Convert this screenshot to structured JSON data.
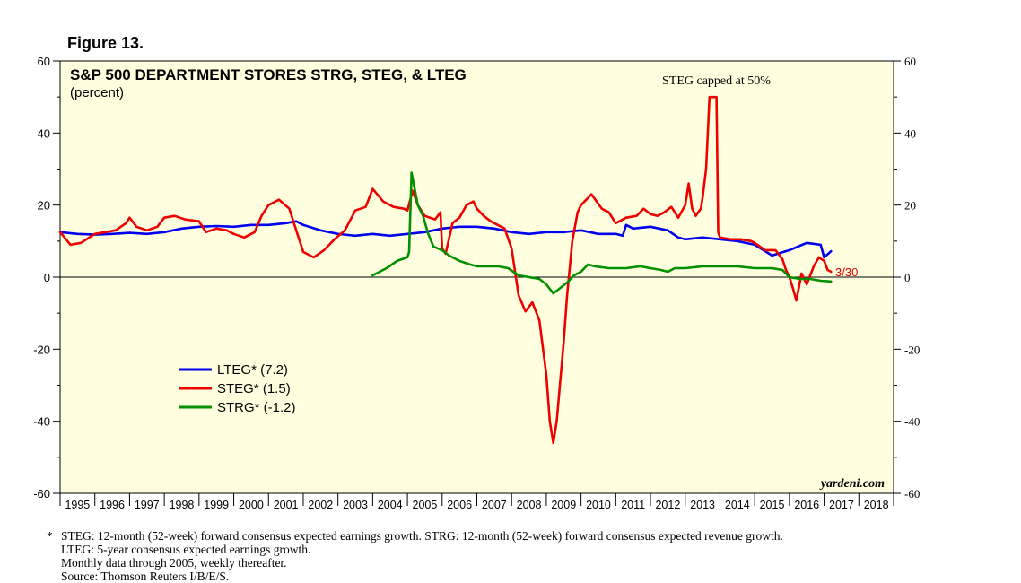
{
  "figure_label": "Figure 13.",
  "chart_data": {
    "type": "line",
    "title": "S&P 500 DEPARTMENT STORES STRG, STEG, & LTEG",
    "subtitle": "(percent)",
    "ylim": [
      -60,
      60
    ],
    "y_ticks": [
      60,
      40,
      20,
      0,
      -20,
      -40,
      -60
    ],
    "y_ticks_left": [
      "60",
      "40",
      "20",
      "0",
      "-20",
      "-40",
      "-60"
    ],
    "y_ticks_right": [
      "60",
      "40",
      "20",
      "0",
      "-20",
      "-40",
      "-60"
    ],
    "xlim": [
      1995,
      2019
    ],
    "x_ticks": [
      "1995",
      "1996",
      "1997",
      "1998",
      "1999",
      "2000",
      "2001",
      "2002",
      "2003",
      "2004",
      "2005",
      "2006",
      "2007",
      "2008",
      "2009",
      "2010",
      "2011",
      "2012",
      "2013",
      "2014",
      "2015",
      "2016",
      "2017",
      "2018"
    ],
    "annotation": "STEG capped at 50%",
    "end_label": "3/30",
    "watermark": "yardeni.com",
    "series": [
      {
        "name": "LTEG",
        "legend": "LTEG* (7.2)",
        "color": "#0000ee",
        "points": [
          [
            1995.0,
            12.5
          ],
          [
            1995.5,
            12.0
          ],
          [
            1996.0,
            11.8
          ],
          [
            1996.5,
            12.0
          ],
          [
            1997.0,
            12.3
          ],
          [
            1997.5,
            12.0
          ],
          [
            1998.0,
            12.5
          ],
          [
            1998.5,
            13.5
          ],
          [
            1999.0,
            14.0
          ],
          [
            1999.5,
            14.2
          ],
          [
            2000.0,
            14.0
          ],
          [
            2000.5,
            14.5
          ],
          [
            2001.0,
            14.5
          ],
          [
            2001.5,
            15.0
          ],
          [
            2001.8,
            15.5
          ],
          [
            2002.0,
            14.5
          ],
          [
            2002.5,
            13.0
          ],
          [
            2003.0,
            12.0
          ],
          [
            2003.5,
            11.5
          ],
          [
            2004.0,
            12.0
          ],
          [
            2004.5,
            11.5
          ],
          [
            2005.0,
            12.0
          ],
          [
            2005.5,
            12.5
          ],
          [
            2006.0,
            13.5
          ],
          [
            2006.5,
            14.0
          ],
          [
            2007.0,
            14.0
          ],
          [
            2007.5,
            13.5
          ],
          [
            2008.0,
            12.5
          ],
          [
            2008.5,
            12.0
          ],
          [
            2009.0,
            12.5
          ],
          [
            2009.5,
            12.5
          ],
          [
            2010.0,
            13.0
          ],
          [
            2010.5,
            12.0
          ],
          [
            2011.0,
            12.0
          ],
          [
            2011.2,
            11.5
          ],
          [
            2011.3,
            14.5
          ],
          [
            2011.5,
            13.5
          ],
          [
            2012.0,
            14.0
          ],
          [
            2012.5,
            13.0
          ],
          [
            2012.8,
            11.0
          ],
          [
            2013.0,
            10.5
          ],
          [
            2013.5,
            11.0
          ],
          [
            2014.0,
            10.5
          ],
          [
            2014.5,
            10.0
          ],
          [
            2015.0,
            9.0
          ],
          [
            2015.5,
            6.0
          ],
          [
            2016.0,
            7.5
          ],
          [
            2016.5,
            9.5
          ],
          [
            2016.9,
            9.0
          ],
          [
            2017.0,
            5.5
          ],
          [
            2017.2,
            7.2
          ]
        ]
      },
      {
        "name": "STEG",
        "legend": "STEG* (1.5)",
        "color": "#ee0000",
        "points": [
          [
            1995.0,
            12.5
          ],
          [
            1995.3,
            9.0
          ],
          [
            1995.6,
            9.5
          ],
          [
            1996.0,
            12.0
          ],
          [
            1996.3,
            12.5
          ],
          [
            1996.6,
            13.0
          ],
          [
            1996.9,
            15.0
          ],
          [
            1997.0,
            16.5
          ],
          [
            1997.2,
            14.0
          ],
          [
            1997.5,
            13.0
          ],
          [
            1997.8,
            14.0
          ],
          [
            1998.0,
            16.5
          ],
          [
            1998.3,
            17.0
          ],
          [
            1998.6,
            16.0
          ],
          [
            1999.0,
            15.5
          ],
          [
            1999.2,
            12.5
          ],
          [
            1999.5,
            13.5
          ],
          [
            1999.8,
            13.0
          ],
          [
            2000.0,
            12.0
          ],
          [
            2000.3,
            11.0
          ],
          [
            2000.6,
            12.5
          ],
          [
            2000.8,
            17.0
          ],
          [
            2001.0,
            20.0
          ],
          [
            2001.3,
            21.5
          ],
          [
            2001.6,
            19.0
          ],
          [
            2001.8,
            13.0
          ],
          [
            2002.0,
            7.0
          ],
          [
            2002.3,
            5.5
          ],
          [
            2002.6,
            7.5
          ],
          [
            2002.9,
            10.5
          ],
          [
            2003.2,
            13.0
          ],
          [
            2003.5,
            18.5
          ],
          [
            2003.8,
            19.5
          ],
          [
            2004.0,
            24.5
          ],
          [
            2004.3,
            21.0
          ],
          [
            2004.6,
            19.5
          ],
          [
            2004.9,
            19.0
          ],
          [
            2005.0,
            18.5
          ],
          [
            2005.15,
            24.0
          ],
          [
            2005.3,
            20.0
          ],
          [
            2005.5,
            17.0
          ],
          [
            2005.8,
            16.0
          ],
          [
            2005.95,
            18.0
          ],
          [
            2006.0,
            8.0
          ],
          [
            2006.1,
            6.5
          ],
          [
            2006.3,
            15.0
          ],
          [
            2006.5,
            16.5
          ],
          [
            2006.7,
            20.0
          ],
          [
            2006.9,
            21.0
          ],
          [
            2007.0,
            19.0
          ],
          [
            2007.2,
            17.0
          ],
          [
            2007.4,
            15.5
          ],
          [
            2007.6,
            14.5
          ],
          [
            2007.8,
            13.5
          ],
          [
            2008.0,
            8.0
          ],
          [
            2008.2,
            -5.0
          ],
          [
            2008.4,
            -9.5
          ],
          [
            2008.6,
            -7.0
          ],
          [
            2008.8,
            -12.0
          ],
          [
            2009.0,
            -27.0
          ],
          [
            2009.1,
            -40.0
          ],
          [
            2009.2,
            -46.0
          ],
          [
            2009.3,
            -40.0
          ],
          [
            2009.5,
            -18.0
          ],
          [
            2009.6,
            -5.0
          ],
          [
            2009.75,
            10.0
          ],
          [
            2009.9,
            18.0
          ],
          [
            2010.0,
            20.0
          ],
          [
            2010.3,
            23.0
          ],
          [
            2010.6,
            19.0
          ],
          [
            2010.8,
            18.0
          ],
          [
            2011.0,
            15.0
          ],
          [
            2011.3,
            16.5
          ],
          [
            2011.6,
            17.0
          ],
          [
            2011.8,
            19.0
          ],
          [
            2012.0,
            17.5
          ],
          [
            2012.2,
            17.0
          ],
          [
            2012.4,
            18.0
          ],
          [
            2012.6,
            19.5
          ],
          [
            2012.8,
            16.5
          ],
          [
            2013.0,
            20.0
          ],
          [
            2013.1,
            26.0
          ],
          [
            2013.2,
            19.0
          ],
          [
            2013.3,
            17.0
          ],
          [
            2013.45,
            19.0
          ],
          [
            2013.5,
            22.0
          ],
          [
            2013.6,
            30.0
          ],
          [
            2013.7,
            50.0
          ],
          [
            2013.9,
            50.0
          ],
          [
            2013.95,
            12.5
          ],
          [
            2014.0,
            11.0
          ],
          [
            2014.3,
            10.5
          ],
          [
            2014.6,
            10.5
          ],
          [
            2014.9,
            10.0
          ],
          [
            2015.0,
            9.5
          ],
          [
            2015.3,
            7.5
          ],
          [
            2015.6,
            7.5
          ],
          [
            2015.8,
            5.0
          ],
          [
            2015.9,
            2.0
          ],
          [
            2016.0,
            0.0
          ],
          [
            2016.1,
            -3.0
          ],
          [
            2016.2,
            -6.5
          ],
          [
            2016.35,
            1.0
          ],
          [
            2016.5,
            -2.0
          ],
          [
            2016.7,
            3.0
          ],
          [
            2016.85,
            5.5
          ],
          [
            2017.0,
            4.5
          ],
          [
            2017.1,
            2.0
          ],
          [
            2017.2,
            1.5
          ]
        ]
      },
      {
        "name": "STRG",
        "legend": "STRG* (-1.2)",
        "color": "#009000",
        "points": [
          [
            2004.0,
            0.5
          ],
          [
            2004.4,
            2.5
          ],
          [
            2004.7,
            4.5
          ],
          [
            2005.0,
            5.5
          ],
          [
            2005.05,
            7.0
          ],
          [
            2005.12,
            29.0
          ],
          [
            2005.2,
            25.0
          ],
          [
            2005.3,
            20.0
          ],
          [
            2005.45,
            17.0
          ],
          [
            2005.6,
            12.0
          ],
          [
            2005.75,
            8.5
          ],
          [
            2006.0,
            7.5
          ],
          [
            2006.2,
            6.0
          ],
          [
            2006.5,
            4.5
          ],
          [
            2006.8,
            3.5
          ],
          [
            2007.0,
            3.0
          ],
          [
            2007.3,
            3.0
          ],
          [
            2007.6,
            3.0
          ],
          [
            2007.9,
            2.5
          ],
          [
            2008.2,
            0.5
          ],
          [
            2008.5,
            0.0
          ],
          [
            2008.8,
            -0.5
          ],
          [
            2009.0,
            -2.0
          ],
          [
            2009.2,
            -4.5
          ],
          [
            2009.4,
            -3.0
          ],
          [
            2009.6,
            -1.5
          ],
          [
            2009.8,
            0.5
          ],
          [
            2010.0,
            1.5
          ],
          [
            2010.2,
            3.5
          ],
          [
            2010.4,
            3.0
          ],
          [
            2010.8,
            2.5
          ],
          [
            2011.3,
            2.5
          ],
          [
            2011.7,
            3.0
          ],
          [
            2012.0,
            2.5
          ],
          [
            2012.3,
            2.0
          ],
          [
            2012.5,
            1.5
          ],
          [
            2012.7,
            2.5
          ],
          [
            2013.0,
            2.5
          ],
          [
            2013.5,
            3.0
          ],
          [
            2014.0,
            3.0
          ],
          [
            2014.5,
            3.0
          ],
          [
            2015.0,
            2.5
          ],
          [
            2015.5,
            2.5
          ],
          [
            2015.8,
            2.0
          ],
          [
            2016.0,
            0.0
          ],
          [
            2016.3,
            -0.5
          ],
          [
            2016.6,
            -0.5
          ],
          [
            2016.9,
            -1.0
          ],
          [
            2017.2,
            -1.2
          ]
        ]
      }
    ]
  },
  "footnotes": {
    "marker": "*",
    "lines": [
      "STEG: 12-month (52-week) forward consensus expected earnings growth. STRG: 12-month (52-week) forward consensus expected revenue growth.",
      "LTEG: 5-year consensus expected earnings growth.",
      "Monthly data through 2005, weekly thereafter.",
      "Source: Thomson Reuters I/B/E/S."
    ]
  }
}
